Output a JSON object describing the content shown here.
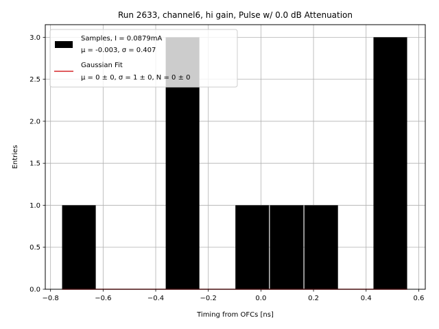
{
  "chart_data": {
    "type": "bar",
    "title": "Run 2633, channel6, hi gain, Pulse w/ 0.0 dB Attenuation",
    "xlabel": "Timing from OFCs [ns]",
    "ylabel": "Entries",
    "xlim": [
      -0.82,
      0.625
    ],
    "ylim": [
      0,
      3.15
    ],
    "grid": true,
    "legend_placement": "top-left",
    "xticks": [
      {
        "value": -0.8,
        "label": "−0.8"
      },
      {
        "value": -0.6,
        "label": "−0.6"
      },
      {
        "value": -0.4,
        "label": "−0.4"
      },
      {
        "value": -0.2,
        "label": "−0.2"
      },
      {
        "value": 0.0,
        "label": "0.0"
      },
      {
        "value": 0.2,
        "label": "0.2"
      },
      {
        "value": 0.4,
        "label": "0.4"
      },
      {
        "value": 0.6,
        "label": "0.6"
      }
    ],
    "yticks": [
      {
        "value": 0.0,
        "label": "0.0"
      },
      {
        "value": 0.5,
        "label": "0.5"
      },
      {
        "value": 1.0,
        "label": "1.0"
      },
      {
        "value": 1.5,
        "label": "1.5"
      },
      {
        "value": 2.0,
        "label": "2.0"
      },
      {
        "value": 2.5,
        "label": "2.5"
      },
      {
        "value": 3.0,
        "label": "3.0"
      }
    ],
    "series": [
      {
        "name": "Samples, I = 0.0879mA",
        "stats": "μ = -0.003, σ = 0.407",
        "kind": "histogram",
        "color": "#000000",
        "bins": [
          {
            "x0": -0.756,
            "x1": -0.628,
            "count": 1
          },
          {
            "x0": -0.362,
            "x1": -0.234,
            "count": 3
          },
          {
            "x0": -0.097,
            "x1": 0.031,
            "count": 1
          },
          {
            "x0": 0.034,
            "x1": 0.162,
            "count": 1
          },
          {
            "x0": 0.165,
            "x1": 0.293,
            "count": 1
          },
          {
            "x0": 0.428,
            "x1": 0.556,
            "count": 3
          }
        ]
      },
      {
        "name": "Gaussian Fit",
        "stats": "μ = 0 ± 0, σ = 1 ± 0, N = 0 ± 0",
        "kind": "line",
        "color": "#d62728",
        "x": [
          -0.756,
          0.556
        ],
        "y": [
          0,
          0
        ]
      }
    ]
  }
}
